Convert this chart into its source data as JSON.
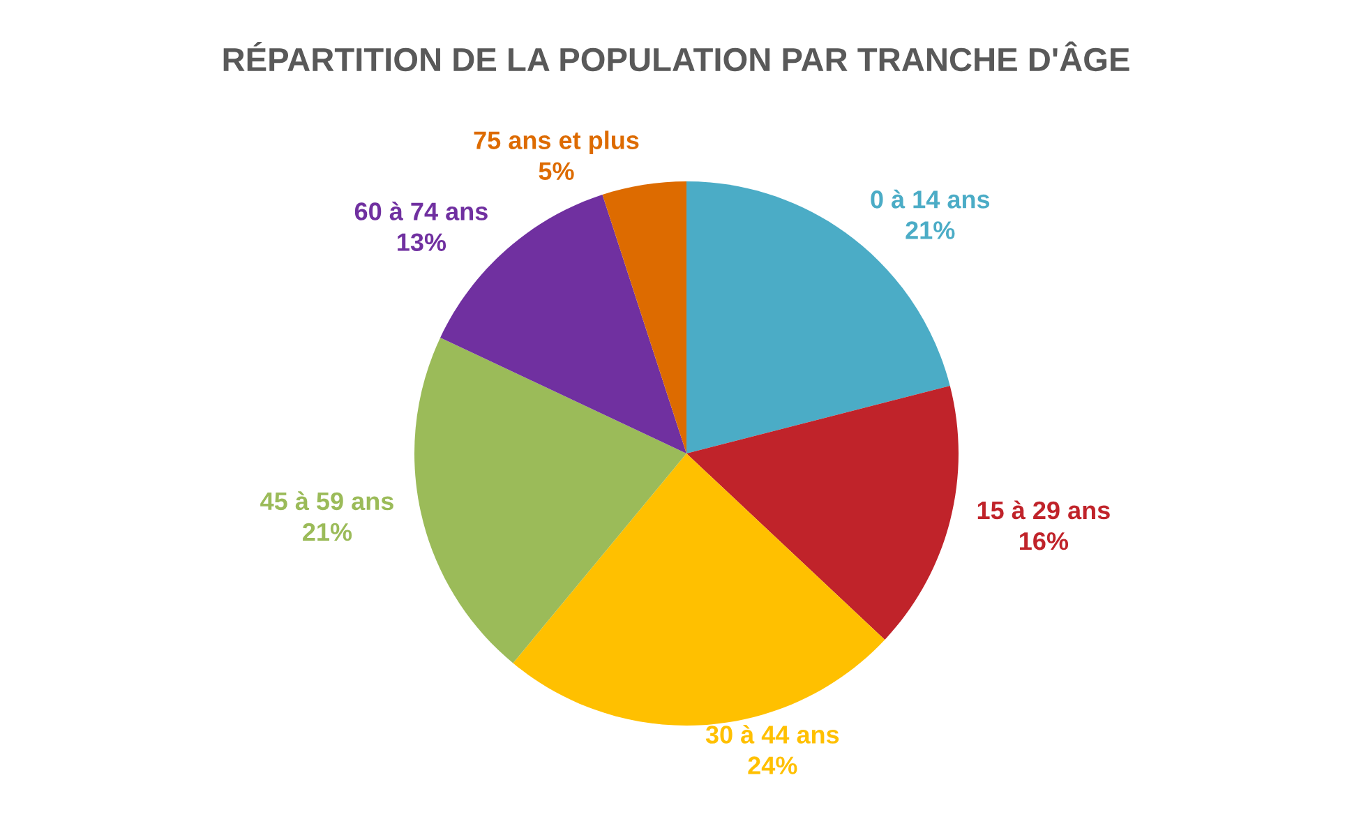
{
  "chart_data": {
    "type": "pie",
    "title": "RÉPARTITION DE LA POPULATION PAR TRANCHE D'ÂGE",
    "categories": [
      "0 à 14 ans",
      "15 à 29 ans",
      "30 à 44 ans",
      "45 à 59 ans",
      "60 à 74 ans",
      "75 ans et plus"
    ],
    "values": [
      21,
      16,
      24,
      21,
      13,
      5
    ],
    "value_labels": [
      "21%",
      "16%",
      "24%",
      "21%",
      "13%",
      "5%"
    ],
    "colors": [
      "#4bacc6",
      "#c0232a",
      "#ffc000",
      "#9bbb59",
      "#7030a0",
      "#dd6b00"
    ],
    "legend": false
  }
}
